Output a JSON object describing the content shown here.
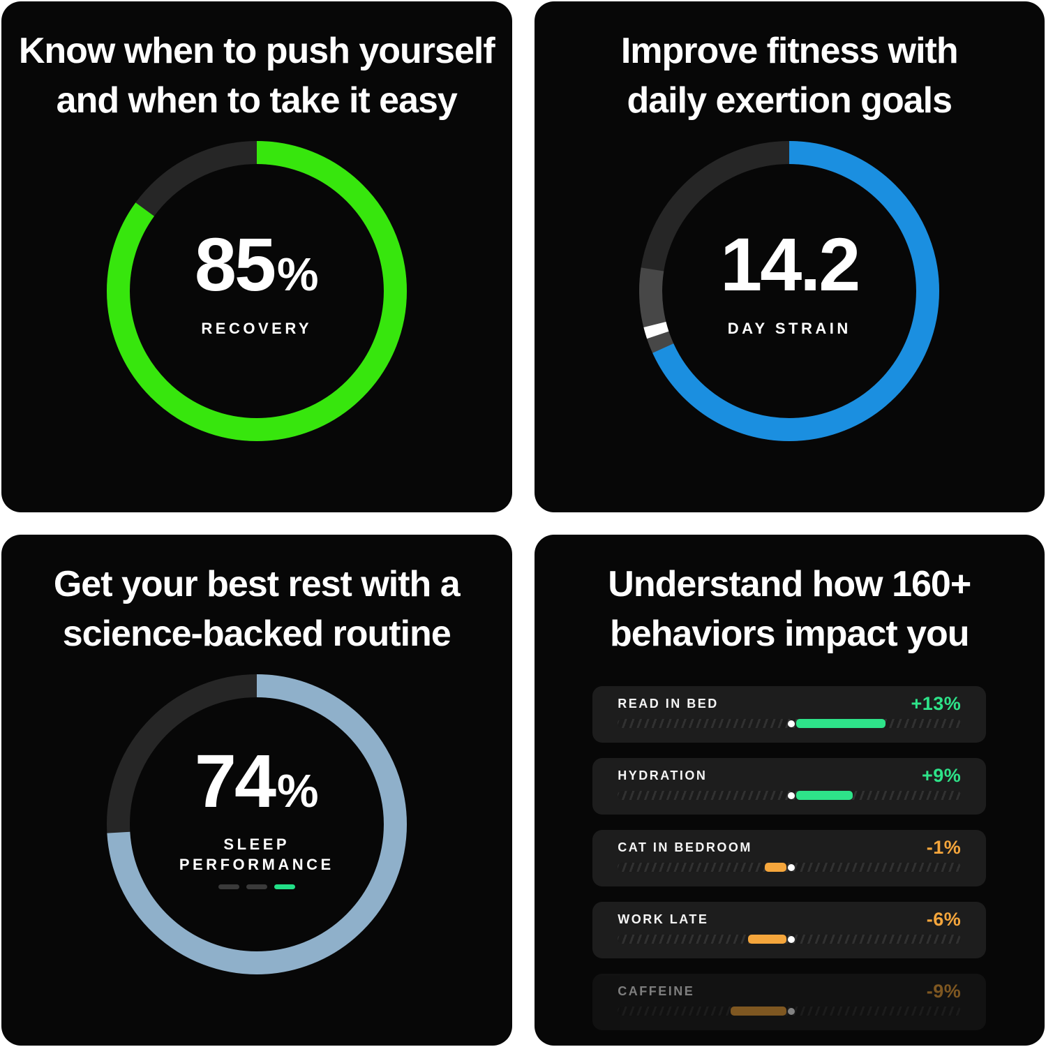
{
  "colors": {
    "background": "#ffffff",
    "panel": "#070707",
    "card": "#1d1d1d",
    "ring_track": "#262626",
    "recovery_green": "#37e60d",
    "strain_blue": "#1b8fe0",
    "sleep_blue": "#8fb0ca",
    "positive_green": "#2ee389",
    "negative_orange": "#f5a63c",
    "white": "#ffffff"
  },
  "panels": {
    "recovery": {
      "title1": "Know when to push yourself",
      "title2": "and when to take it easy",
      "value": "85",
      "unit": "%",
      "label": "RECOVERY"
    },
    "strain": {
      "title1": "Improve fitness with",
      "title2": "daily exertion goals",
      "value": "14.2",
      "unit": "",
      "label": "DAY STRAIN"
    },
    "sleep": {
      "title1": "Get your best rest with a",
      "title2": "science-backed routine",
      "value": "74",
      "unit": "%",
      "label1": "SLEEP",
      "label2": "PERFORMANCE",
      "dashes": [
        "#3a3a3a",
        "#3a3a3a",
        "#22df87"
      ]
    },
    "behaviors": {
      "title1": "Understand how 160+",
      "title2": "behaviors impact you",
      "items": [
        {
          "label": "READ IN BED",
          "impact": "+13%",
          "positive": true,
          "bar_width_pct": 26,
          "dimmed": false
        },
        {
          "label": "HYDRATION",
          "impact": "+9%",
          "positive": true,
          "bar_width_pct": 16.5,
          "dimmed": false
        },
        {
          "label": "CAT IN BEDROOM",
          "impact": "-1%",
          "positive": false,
          "bar_width_pct": 6.3,
          "dimmed": false
        },
        {
          "label": "WORK LATE",
          "impact": "-6%",
          "positive": false,
          "bar_width_pct": 11.2,
          "dimmed": false
        },
        {
          "label": "CAFFEINE",
          "impact": "-9%",
          "positive": false,
          "bar_width_pct": 16.3,
          "dimmed": true
        }
      ]
    }
  },
  "render": {
    "rings": [
      {
        "id": "recovery",
        "track": "#262626",
        "segments": [
          {
            "from": 0,
            "to": 306,
            "color": "#37e60d"
          }
        ]
      },
      {
        "id": "strain",
        "track": "#262626",
        "segments": [
          {
            "from": 245.5,
            "to": 279,
            "color": "#474747"
          },
          {
            "from": 251.5,
            "to": 256,
            "color": "#ffffff"
          },
          {
            "from": 0,
            "to": 245.5,
            "color": "#1b8fe0"
          }
        ]
      },
      {
        "id": "sleep",
        "track": "#262626",
        "segments": [
          {
            "from": 0,
            "to": 266.5,
            "color": "#8fb0ca"
          }
        ]
      }
    ]
  },
  "chart_data": [
    {
      "type": "gauge",
      "title": "Recovery",
      "value": 85,
      "unit": "%",
      "label": "RECOVERY",
      "arc_degrees": 306,
      "color": "#37e60d",
      "track_color": "#262626"
    },
    {
      "type": "gauge",
      "title": "Day Strain",
      "value": 14.2,
      "unit": "",
      "label": "DAY STRAIN",
      "arc_degrees": 245.5,
      "target_marker_degrees": 253,
      "color": "#1b8fe0",
      "track_color": "#262626"
    },
    {
      "type": "gauge",
      "title": "Sleep Performance",
      "value": 74,
      "unit": "%",
      "label": "SLEEP PERFORMANCE",
      "arc_degrees": 266.5,
      "color": "#8fb0ca",
      "track_color": "#262626"
    },
    {
      "type": "bar",
      "title": "Behavior impacts",
      "orientation": "horizontal-diverging",
      "baseline": 0,
      "categories": [
        "READ IN BED",
        "HYDRATION",
        "CAT IN BEDROOM",
        "WORK LATE",
        "CAFFEINE"
      ],
      "values": [
        13,
        9,
        -1,
        -6,
        -9
      ],
      "unit": "%"
    }
  ]
}
